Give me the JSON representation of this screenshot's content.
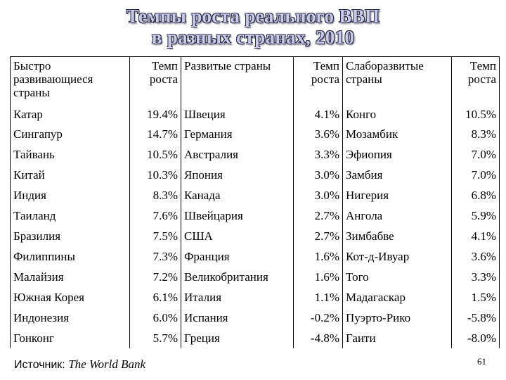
{
  "title": {
    "line1": "Темпы роста реального ВВП",
    "line2": "в разных странах, 2010"
  },
  "headers": [
    "Быстро развивающиеся страны",
    "Темп роста",
    "Развитые страны",
    "Темп роста",
    "Слаборазвитые страны",
    "Темп роста"
  ],
  "rows": [
    [
      "Катар",
      "19.4%",
      "Швеция",
      "4.1%",
      "Конго",
      "10.5%"
    ],
    [
      "Сингапур",
      "14.7%",
      "Германия",
      "3.6%",
      "Мозамбик",
      "8.3%"
    ],
    [
      "Тайвань",
      "10.5%",
      "Австралия",
      "3.3%",
      "Эфиопия",
      "7.0%"
    ],
    [
      "Китай",
      "10.3%",
      "Япония",
      "3.0%",
      "Замбия",
      "7.0%"
    ],
    [
      "Индия",
      "8.3%",
      "Канада",
      "3.0%",
      "Нигерия",
      "6.8%"
    ],
    [
      "Таиланд",
      "7.6%",
      "Швейцария",
      "2.7%",
      "Ангола",
      "5.9%"
    ],
    [
      "Бразилия",
      "7.5%",
      "США",
      "2.7%",
      "Зимбабве",
      "4.1%"
    ],
    [
      "Филиппины",
      "7.3%",
      "Франция",
      "1.6%",
      "Кот-д-Ивуар",
      "3.6%"
    ],
    [
      "Малайзия",
      "7.2%",
      "Великобритания",
      "1.6%",
      "Того",
      "3.3%"
    ],
    [
      "Южная Корея",
      "6.1%",
      "Италия",
      "1.1%",
      "Мадагаскар",
      "1.5%"
    ],
    [
      "Индонезия",
      "6.0%",
      "Испания",
      "-0.2%",
      "Пуэрто-Рико",
      "-5.8%"
    ],
    [
      "Гонконг",
      "5.7%",
      "Греция",
      "-4.8%",
      "Гаити",
      "-8.0%"
    ]
  ],
  "source": {
    "label": "Источник: ",
    "name": "The World Bank"
  },
  "page_number": "61"
}
